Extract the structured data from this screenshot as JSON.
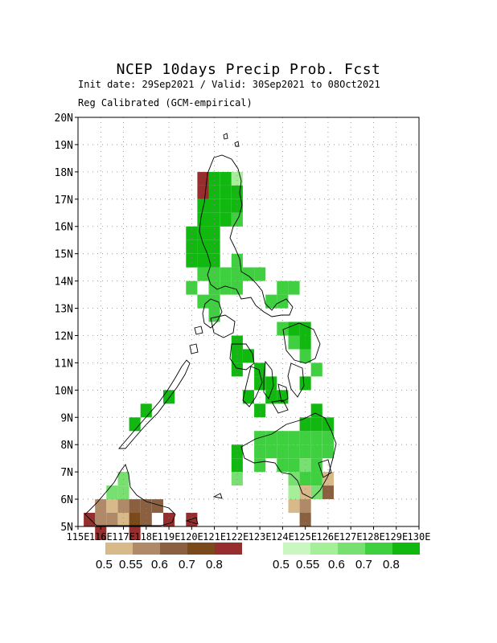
{
  "header": {
    "title": "NCEP 10days Precip Prob. Fcst",
    "subtitle_dates": "Init date: 29Sep2021 / Valid: 30Sep2021 to 08Oct2021",
    "subtitle_method": "Reg Calibrated (GCM-empirical)"
  },
  "map": {
    "lat_labels": [
      "20N",
      "19N",
      "18N",
      "17N",
      "16N",
      "15N",
      "14N",
      "13N",
      "12N",
      "11N",
      "10N",
      "9N",
      "8N",
      "7N",
      "6N",
      "5N"
    ],
    "lon_labels": [
      "115E",
      "116E",
      "117E",
      "118E",
      "119E",
      "120E",
      "121E",
      "122E",
      "123E",
      "124E",
      "125E",
      "126E",
      "127E",
      "128E",
      "129E",
      "130E"
    ],
    "lon_range": [
      115,
      130
    ],
    "lat_range": [
      5,
      20
    ],
    "grid": "dotted",
    "colors": {
      "dry": [
        "#d8b98a",
        "#b08a68",
        "#8a6040",
        "#7a4a1a",
        "#962e2e"
      ],
      "wet": [
        "#c8f7c0",
        "#a4ef98",
        "#78e070",
        "#3fd03f",
        "#10b810"
      ]
    },
    "wet_cells": [
      {
        "lon": 121.0,
        "lat": 17.75,
        "c": 4
      },
      {
        "lon": 121.5,
        "lat": 17.75,
        "c": 4
      },
      {
        "lon": 122.0,
        "lat": 17.75,
        "c": 1
      },
      {
        "lon": 121.0,
        "lat": 17.25,
        "c": 4
      },
      {
        "lon": 121.5,
        "lat": 17.25,
        "c": 4
      },
      {
        "lon": 122.0,
        "lat": 17.25,
        "c": 4
      },
      {
        "lon": 120.5,
        "lat": 16.75,
        "c": 4
      },
      {
        "lon": 121.0,
        "lat": 16.75,
        "c": 4
      },
      {
        "lon": 121.5,
        "lat": 16.75,
        "c": 4
      },
      {
        "lon": 122.0,
        "lat": 16.75,
        "c": 4
      },
      {
        "lon": 120.5,
        "lat": 16.25,
        "c": 4
      },
      {
        "lon": 121.0,
        "lat": 16.25,
        "c": 4
      },
      {
        "lon": 121.5,
        "lat": 16.25,
        "c": 4
      },
      {
        "lon": 122.0,
        "lat": 16.25,
        "c": 3
      },
      {
        "lon": 120.0,
        "lat": 15.75,
        "c": 4
      },
      {
        "lon": 120.5,
        "lat": 15.75,
        "c": 4
      },
      {
        "lon": 121.0,
        "lat": 15.75,
        "c": 4
      },
      {
        "lon": 120.0,
        "lat": 15.25,
        "c": 4
      },
      {
        "lon": 120.5,
        "lat": 15.25,
        "c": 4
      },
      {
        "lon": 121.0,
        "lat": 15.25,
        "c": 4
      },
      {
        "lon": 120.0,
        "lat": 14.75,
        "c": 4
      },
      {
        "lon": 120.5,
        "lat": 14.75,
        "c": 4
      },
      {
        "lon": 121.0,
        "lat": 14.75,
        "c": 4
      },
      {
        "lon": 122.0,
        "lat": 14.75,
        "c": 3
      },
      {
        "lon": 120.5,
        "lat": 14.25,
        "c": 3
      },
      {
        "lon": 121.0,
        "lat": 14.25,
        "c": 3
      },
      {
        "lon": 121.5,
        "lat": 14.25,
        "c": 3
      },
      {
        "lon": 122.0,
        "lat": 14.25,
        "c": 3
      },
      {
        "lon": 122.5,
        "lat": 14.25,
        "c": 3
      },
      {
        "lon": 123.0,
        "lat": 14.25,
        "c": 3
      },
      {
        "lon": 120.0,
        "lat": 13.75,
        "c": 3
      },
      {
        "lon": 121.0,
        "lat": 13.75,
        "c": 3
      },
      {
        "lon": 121.5,
        "lat": 13.75,
        "c": 3
      },
      {
        "lon": 122.0,
        "lat": 13.75,
        "c": 3
      },
      {
        "lon": 124.0,
        "lat": 13.75,
        "c": 3
      },
      {
        "lon": 124.5,
        "lat": 13.75,
        "c": 3
      },
      {
        "lon": 120.5,
        "lat": 13.25,
        "c": 3
      },
      {
        "lon": 121.0,
        "lat": 13.25,
        "c": 3
      },
      {
        "lon": 123.5,
        "lat": 13.25,
        "c": 3
      },
      {
        "lon": 124.0,
        "lat": 13.25,
        "c": 3
      },
      {
        "lon": 121.0,
        "lat": 12.75,
        "c": 3
      },
      {
        "lon": 124.0,
        "lat": 12.25,
        "c": 3
      },
      {
        "lon": 124.5,
        "lat": 12.25,
        "c": 4
      },
      {
        "lon": 125.0,
        "lat": 12.25,
        "c": 4
      },
      {
        "lon": 122.0,
        "lat": 11.75,
        "c": 4
      },
      {
        "lon": 124.5,
        "lat": 11.75,
        "c": 3
      },
      {
        "lon": 125.0,
        "lat": 11.75,
        "c": 4
      },
      {
        "lon": 122.0,
        "lat": 11.25,
        "c": 4
      },
      {
        "lon": 122.5,
        "lat": 11.25,
        "c": 4
      },
      {
        "lon": 125.0,
        "lat": 11.25,
        "c": 3
      },
      {
        "lon": 122.0,
        "lat": 10.75,
        "c": 4
      },
      {
        "lon": 123.0,
        "lat": 10.75,
        "c": 4
      },
      {
        "lon": 125.5,
        "lat": 10.75,
        "c": 3
      },
      {
        "lon": 123.0,
        "lat": 10.25,
        "c": 4
      },
      {
        "lon": 123.5,
        "lat": 10.25,
        "c": 4
      },
      {
        "lon": 125.0,
        "lat": 10.25,
        "c": 4
      },
      {
        "lon": 119.0,
        "lat": 9.75,
        "c": 4
      },
      {
        "lon": 122.5,
        "lat": 9.75,
        "c": 4
      },
      {
        "lon": 123.5,
        "lat": 9.75,
        "c": 4
      },
      {
        "lon": 124.0,
        "lat": 9.75,
        "c": 4
      },
      {
        "lon": 118.0,
        "lat": 9.25,
        "c": 4
      },
      {
        "lon": 123.0,
        "lat": 9.25,
        "c": 4
      },
      {
        "lon": 125.5,
        "lat": 9.25,
        "c": 4
      },
      {
        "lon": 117.5,
        "lat": 8.75,
        "c": 4
      },
      {
        "lon": 125.0,
        "lat": 8.75,
        "c": 4
      },
      {
        "lon": 125.5,
        "lat": 8.75,
        "c": 4
      },
      {
        "lon": 126.0,
        "lat": 8.75,
        "c": 4
      },
      {
        "lon": 123.0,
        "lat": 8.25,
        "c": 3
      },
      {
        "lon": 123.5,
        "lat": 8.25,
        "c": 3
      },
      {
        "lon": 124.0,
        "lat": 8.25,
        "c": 3
      },
      {
        "lon": 124.5,
        "lat": 8.25,
        "c": 3
      },
      {
        "lon": 125.0,
        "lat": 8.25,
        "c": 3
      },
      {
        "lon": 125.5,
        "lat": 8.25,
        "c": 3
      },
      {
        "lon": 126.0,
        "lat": 8.25,
        "c": 3
      },
      {
        "lon": 122.0,
        "lat": 7.75,
        "c": 4
      },
      {
        "lon": 123.0,
        "lat": 7.75,
        "c": 3
      },
      {
        "lon": 123.5,
        "lat": 7.75,
        "c": 3
      },
      {
        "lon": 124.0,
        "lat": 7.75,
        "c": 3
      },
      {
        "lon": 124.5,
        "lat": 7.75,
        "c": 3
      },
      {
        "lon": 125.0,
        "lat": 7.75,
        "c": 3
      },
      {
        "lon": 125.5,
        "lat": 7.75,
        "c": 3
      },
      {
        "lon": 126.0,
        "lat": 7.75,
        "c": 3
      },
      {
        "lon": 122.0,
        "lat": 7.25,
        "c": 4
      },
      {
        "lon": 123.0,
        "lat": 7.25,
        "c": 3
      },
      {
        "lon": 124.0,
        "lat": 7.25,
        "c": 3
      },
      {
        "lon": 124.5,
        "lat": 7.25,
        "c": 3
      },
      {
        "lon": 125.0,
        "lat": 7.25,
        "c": 2
      },
      {
        "lon": 125.5,
        "lat": 7.25,
        "c": 3
      },
      {
        "lon": 117.0,
        "lat": 6.75,
        "c": 2
      },
      {
        "lon": 122.0,
        "lat": 6.75,
        "c": 2
      },
      {
        "lon": 124.5,
        "lat": 6.75,
        "c": 2
      },
      {
        "lon": 125.0,
        "lat": 6.75,
        "c": 3
      },
      {
        "lon": 125.5,
        "lat": 6.75,
        "c": 3
      },
      {
        "lon": 116.5,
        "lat": 6.25,
        "c": 2
      },
      {
        "lon": 117.0,
        "lat": 6.25,
        "c": 2
      },
      {
        "lon": 124.5,
        "lat": 6.25,
        "c": 1
      },
      {
        "lon": 125.5,
        "lat": 6.25,
        "c": 2
      }
    ],
    "dry_cells": [
      {
        "lon": 120.5,
        "lat": 17.75,
        "c": 4
      },
      {
        "lon": 120.5,
        "lat": 17.25,
        "c": 4
      },
      {
        "lon": 126.0,
        "lat": 6.75,
        "c": 0
      },
      {
        "lon": 126.0,
        "lat": 6.25,
        "c": 2
      },
      {
        "lon": 125.0,
        "lat": 6.25,
        "c": 0
      },
      {
        "lon": 124.5,
        "lat": 5.75,
        "c": 0
      },
      {
        "lon": 125.0,
        "lat": 5.75,
        "c": 1
      },
      {
        "lon": 125.0,
        "lat": 5.25,
        "c": 2
      },
      {
        "lon": 116.0,
        "lat": 5.75,
        "c": 1
      },
      {
        "lon": 116.5,
        "lat": 5.75,
        "c": 0
      },
      {
        "lon": 117.0,
        "lat": 5.75,
        "c": 1
      },
      {
        "lon": 116.0,
        "lat": 5.25,
        "c": 1
      },
      {
        "lon": 116.5,
        "lat": 5.25,
        "c": 1
      },
      {
        "lon": 117.0,
        "lat": 5.25,
        "c": 0
      },
      {
        "lon": 117.5,
        "lat": 5.25,
        "c": 3
      },
      {
        "lon": 118.0,
        "lat": 5.25,
        "c": 2
      },
      {
        "lon": 117.5,
        "lat": 5.75,
        "c": 2
      },
      {
        "lon": 118.0,
        "lat": 5.75,
        "c": 2
      },
      {
        "lon": 118.5,
        "lat": 5.75,
        "c": 2
      },
      {
        "lon": 115.5,
        "lat": 5.25,
        "c": 4
      },
      {
        "lon": 116.0,
        "lat": 4.75,
        "c": 4
      },
      {
        "lon": 117.5,
        "lat": 4.75,
        "c": 4
      },
      {
        "lon": 119.0,
        "lat": 5.25,
        "c": 4
      },
      {
        "lon": 120.0,
        "lat": 5.25,
        "c": 4
      }
    ]
  },
  "legend": {
    "dry_labels": [
      "0.5",
      "0.55",
      "0.6",
      "0.7",
      "0.8"
    ],
    "wet_labels": [
      "0.5",
      "0.55",
      "0.6",
      "0.7",
      "0.8"
    ]
  }
}
